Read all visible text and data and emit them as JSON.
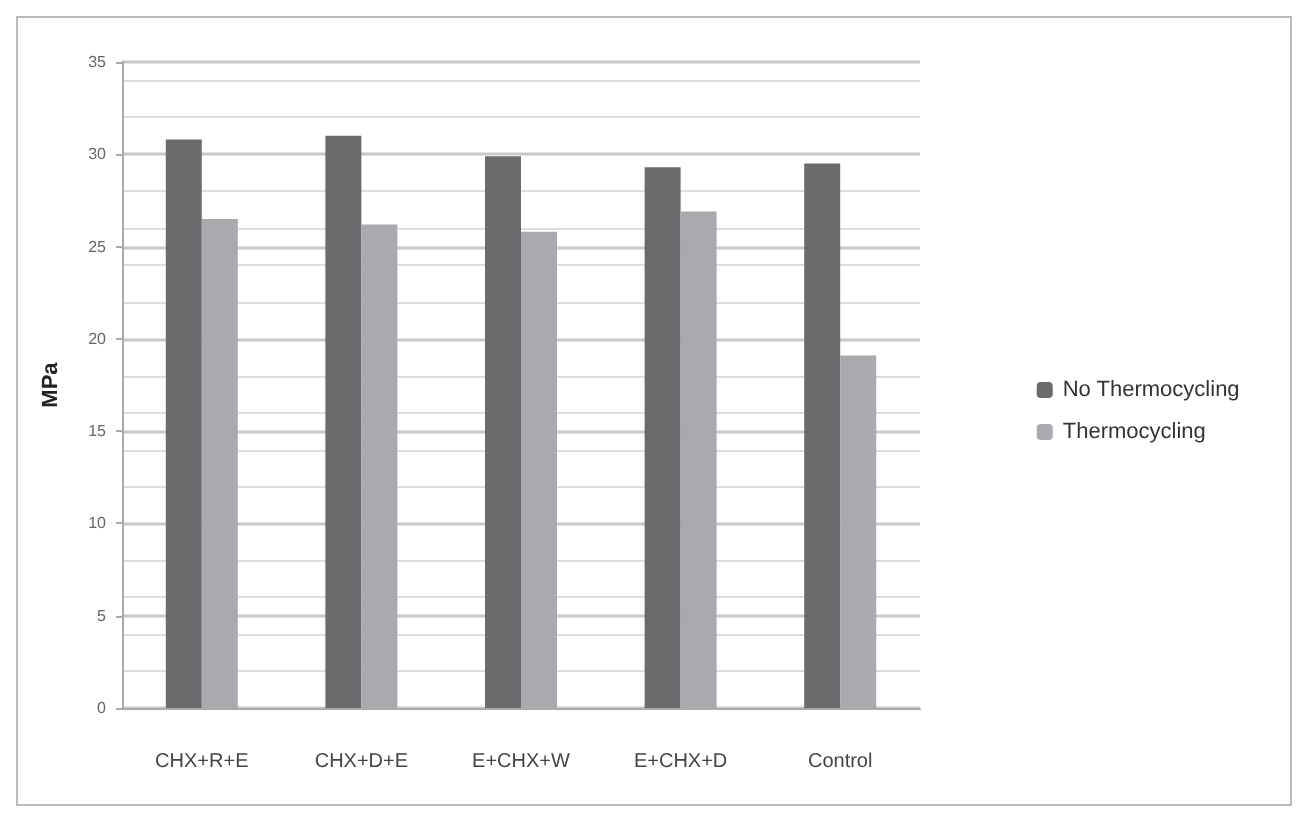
{
  "chart_data": {
    "type": "bar",
    "ylabel": "MPa",
    "categories": [
      "CHX+R+E",
      "CHX+D+E",
      "E+CHX+W",
      "E+CHX+D",
      "Control"
    ],
    "series": [
      {
        "name": "No Thermocycling",
        "color": "#6b6b6d",
        "values": [
          30.8,
          31.0,
          29.9,
          29.3,
          29.5
        ]
      },
      {
        "name": "Thermocycling",
        "color": "#a9aaad",
        "values": [
          26.5,
          26.2,
          25.8,
          26.9,
          19.1
        ]
      }
    ],
    "ylim": [
      0,
      35
    ],
    "yticks": [
      0,
      5,
      10,
      15,
      20,
      25,
      30,
      35
    ],
    "grid": true,
    "legend": "right"
  }
}
